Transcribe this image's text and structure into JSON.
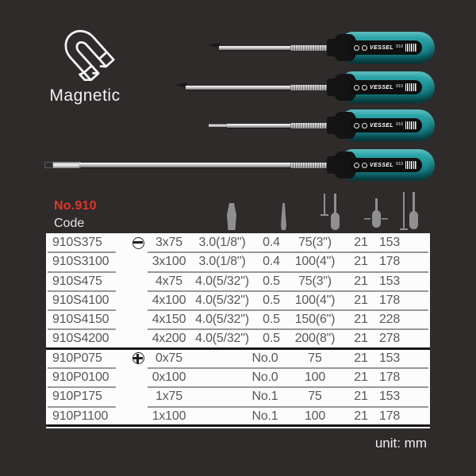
{
  "page": {
    "background": "#2e2b2a",
    "unit_note": "unit: mm"
  },
  "magnetic_feature": {
    "label": "Magnetic",
    "icon": "horseshoe-magnet-icon"
  },
  "branding": {
    "brand": "VESSEL",
    "model": "910",
    "handle_color": "#1e969c"
  },
  "series_header": {
    "series_no": "No.910",
    "code_label": "Code",
    "accent_color": "#e5332a"
  },
  "products": [
    {
      "type": "phillips",
      "length": "short"
    },
    {
      "type": "phillips",
      "length": "medium"
    },
    {
      "type": "slotted",
      "length": "short"
    },
    {
      "type": "slotted",
      "length": "long"
    }
  ],
  "table": {
    "columns": [
      "code",
      "tip-type",
      "size",
      "blade-width",
      "blade-thickness",
      "shaft-length",
      "handle-diameter",
      "overall-length"
    ],
    "rows": [
      {
        "code": "910S375",
        "group": "slotted",
        "tip_icon": "slotted",
        "size": "3x75",
        "blade_width": "3.0(1/8\")",
        "thickness": "0.4",
        "shaft_length": "75(3\")",
        "handle_dia": "21",
        "overall_length": "153"
      },
      {
        "code": "910S3100",
        "group": "slotted",
        "size": "3x100",
        "blade_width": "3.0(1/8\")",
        "thickness": "0.4",
        "shaft_length": "100(4\")",
        "handle_dia": "21",
        "overall_length": "178"
      },
      {
        "code": "910S475",
        "group": "slotted",
        "size": "4x75",
        "blade_width": "4.0(5/32\")",
        "thickness": "0.5",
        "shaft_length": "75(3\")",
        "handle_dia": "21",
        "overall_length": "153"
      },
      {
        "code": "910S4100",
        "group": "slotted",
        "size": "4x100",
        "blade_width": "4.0(5/32\")",
        "thickness": "0.5",
        "shaft_length": "100(4\")",
        "handle_dia": "21",
        "overall_length": "178"
      },
      {
        "code": "910S4150",
        "group": "slotted",
        "size": "4x150",
        "blade_width": "4.0(5/32\")",
        "thickness": "0.5",
        "shaft_length": "150(6\")",
        "handle_dia": "21",
        "overall_length": "228"
      },
      {
        "code": "910S4200",
        "group": "slotted",
        "size": "4x200",
        "blade_width": "4.0(5/32\")",
        "thickness": "0.5",
        "shaft_length": "200(8\")",
        "handle_dia": "21",
        "overall_length": "278"
      },
      {
        "code": "910P075",
        "group": "phillips",
        "tip_icon": "phillips",
        "size": "0x75",
        "point": "No.0",
        "shaft_length": "75",
        "handle_dia": "21",
        "overall_length": "153"
      },
      {
        "code": "910P0100",
        "group": "phillips",
        "size": "0x100",
        "point": "No.0",
        "shaft_length": "100",
        "handle_dia": "21",
        "overall_length": "178"
      },
      {
        "code": "910P175",
        "group": "phillips",
        "size": "1x75",
        "point": "No.1",
        "shaft_length": "75",
        "handle_dia": "21",
        "overall_length": "153"
      },
      {
        "code": "910P1100",
        "group": "phillips",
        "size": "1x100",
        "point": "No.1",
        "shaft_length": "100",
        "handle_dia": "21",
        "overall_length": "178"
      }
    ]
  }
}
